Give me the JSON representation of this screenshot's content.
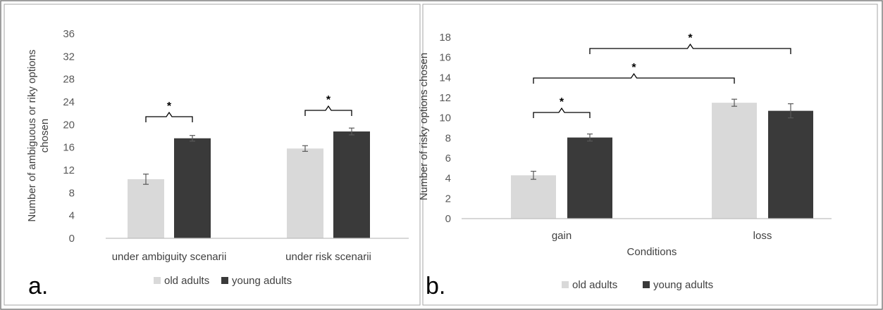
{
  "colors": {
    "old": "#d9d9d9",
    "young": "#3a3a3a",
    "axis": "#bfbfbf",
    "bracket": "#000000",
    "border": "#7f7f7f"
  },
  "chart_data": [
    {
      "panel_label": "a.",
      "type": "bar",
      "categories": [
        "under ambiguity scenarii",
        "under risk scenarii"
      ],
      "series": [
        {
          "name": "old adults",
          "values": [
            10.4,
            15.8
          ],
          "errors": [
            0.9,
            0.5
          ]
        },
        {
          "name": "young adults",
          "values": [
            17.6,
            18.8
          ],
          "errors": [
            0.5,
            0.6
          ]
        }
      ],
      "ylabel": "Number of ambiguous or riky options chosen",
      "xlabel": "",
      "ylim": [
        0,
        36
      ],
      "yticks": [
        "0",
        "4",
        "8",
        "12",
        "16",
        "20",
        "24",
        "28",
        "32",
        "36"
      ],
      "legend_position": "bottom",
      "grid": false,
      "significance": [
        {
          "between": "old adults vs young adults",
          "category": "under ambiguity scenarii",
          "marker": "*"
        },
        {
          "between": "old adults vs young adults",
          "category": "under risk scenarii",
          "marker": "*"
        }
      ]
    },
    {
      "panel_label": "b.",
      "type": "bar",
      "categories": [
        "gain",
        "loss"
      ],
      "series": [
        {
          "name": "old adults",
          "values": [
            4.3,
            11.5
          ],
          "errors": [
            0.4,
            0.35
          ]
        },
        {
          "name": "young adults",
          "values": [
            8.05,
            10.7
          ],
          "errors": [
            0.35,
            0.7
          ]
        }
      ],
      "ylabel": "Number of risky options chosen",
      "xlabel": "Conditions",
      "ylim": [
        0,
        18
      ],
      "yticks": [
        "0",
        "2",
        "4",
        "6",
        "8",
        "10",
        "12",
        "14",
        "16",
        "18"
      ],
      "legend_position": "bottom",
      "grid": false,
      "significance": [
        {
          "between": "old adults gain vs young adults gain",
          "marker": "*"
        },
        {
          "between": "old adults gain vs old adults loss",
          "marker": "*"
        },
        {
          "between": "young adults gain vs young adults loss",
          "marker": "*"
        }
      ]
    }
  ]
}
